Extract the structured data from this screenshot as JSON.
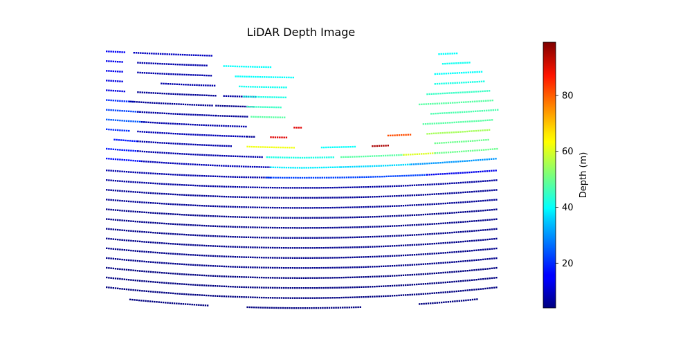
{
  "chart_data": {
    "type": "heatmap",
    "title": "LiDAR Depth Image",
    "colorbar": {
      "label": "Depth (m)",
      "colormap": "jet",
      "range": [
        4,
        99
      ],
      "ticks": [
        20,
        40,
        60,
        80
      ]
    },
    "axes_visible": false,
    "grid": false,
    "scan_rows": [
      {
        "segments": [
          {
            "x0": 0.0,
            "x1": 0.05,
            "depth": 15
          },
          {
            "x0": 0.07,
            "x1": 0.27,
            "depth": 10
          },
          {
            "x0": 0.85,
            "x1": 0.9,
            "depth": 40
          }
        ]
      },
      {
        "segments": [
          {
            "x0": 0.0,
            "x1": 0.04,
            "depth": 14
          },
          {
            "x0": 0.08,
            "x1": 0.26,
            "depth": 8
          },
          {
            "x0": 0.3,
            "x1": 0.42,
            "depth": 40
          },
          {
            "x0": 0.86,
            "x1": 0.93,
            "depth": 41
          }
        ]
      },
      {
        "segments": [
          {
            "x0": 0.0,
            "x1": 0.04,
            "depth": 14
          },
          {
            "x0": 0.08,
            "x1": 0.27,
            "depth": 8
          },
          {
            "x0": 0.33,
            "x1": 0.48,
            "depth": 40
          },
          {
            "x0": 0.84,
            "x1": 0.96,
            "depth": 40
          }
        ]
      },
      {
        "segments": [
          {
            "x0": 0.0,
            "x1": 0.04,
            "depth": 13
          },
          {
            "x0": 0.14,
            "x1": 0.28,
            "depth": 8
          },
          {
            "x0": 0.34,
            "x1": 0.46,
            "depth": 41
          },
          {
            "x0": 0.84,
            "x1": 0.97,
            "depth": 42
          }
        ]
      },
      {
        "segments": [
          {
            "x0": 0.0,
            "x1": 0.05,
            "depth": 13
          },
          {
            "x0": 0.08,
            "x1": 0.28,
            "depth": 6
          },
          {
            "x0": 0.3,
            "x1": 0.38,
            "depth": 7
          },
          {
            "x0": 0.35,
            "x1": 0.46,
            "depth": 42
          },
          {
            "x0": 0.82,
            "x1": 0.98,
            "depth": 45
          }
        ]
      },
      {
        "segments": [
          {
            "x0": 0.0,
            "x1": 0.07,
            "depth": 20
          },
          {
            "x0": 0.06,
            "x1": 0.27,
            "depth": 6
          },
          {
            "x0": 0.28,
            "x1": 0.38,
            "depth": 5
          },
          {
            "x0": 0.36,
            "x1": 0.45,
            "depth": 45
          },
          {
            "x0": 0.8,
            "x1": 0.99,
            "depth": 48
          }
        ]
      },
      {
        "segments": [
          {
            "x0": 0.0,
            "x1": 0.09,
            "depth": 22
          },
          {
            "x0": 0.08,
            "x1": 0.28,
            "depth": 7
          },
          {
            "x0": 0.28,
            "x1": 0.36,
            "depth": 6
          },
          {
            "x0": 0.37,
            "x1": 0.46,
            "depth": 48
          },
          {
            "x0": 0.83,
            "x1": 1.0,
            "depth": 47
          }
        ]
      },
      {
        "segments": [
          {
            "x0": 0.0,
            "x1": 0.1,
            "depth": 24
          },
          {
            "x0": 0.09,
            "x1": 0.36,
            "depth": 8
          },
          {
            "x0": 0.48,
            "x1": 0.5,
            "depth": 90
          },
          {
            "x0": 0.81,
            "x1": 0.99,
            "depth": 48
          }
        ]
      },
      {
        "segments": [
          {
            "x0": 0.0,
            "x1": 0.06,
            "depth": 20
          },
          {
            "x0": 0.08,
            "x1": 0.36,
            "depth": 9
          },
          {
            "x0": 0.36,
            "x1": 0.38,
            "depth": 6
          },
          {
            "x0": 0.42,
            "x1": 0.46,
            "depth": 90
          },
          {
            "x0": 0.72,
            "x1": 0.78,
            "depth": 80
          },
          {
            "x0": 0.82,
            "x1": 0.98,
            "depth": 55
          }
        ]
      },
      {
        "segments": [
          {
            "x0": 0.02,
            "x1": 0.08,
            "depth": 18
          },
          {
            "x0": 0.08,
            "x1": 0.32,
            "depth": 8
          },
          {
            "x0": 0.36,
            "x1": 0.48,
            "depth": 62
          },
          {
            "x0": 0.55,
            "x1": 0.64,
            "depth": 40
          },
          {
            "x0": 0.68,
            "x1": 0.72,
            "depth": 95
          },
          {
            "x0": 0.84,
            "x1": 0.98,
            "depth": 50
          }
        ]
      },
      {
        "segments": [
          {
            "x0": 0.0,
            "x1": 0.08,
            "depth": 18
          },
          {
            "x0": 0.08,
            "x1": 0.4,
            "depth": 8
          },
          {
            "x0": 0.41,
            "x1": 0.58,
            "depth": 42
          },
          {
            "x0": 0.6,
            "x1": 0.76,
            "depth": 48
          },
          {
            "x0": 0.76,
            "x1": 0.84,
            "depth": 60
          },
          {
            "x0": 0.84,
            "x1": 1.0,
            "depth": 50
          }
        ]
      },
      {
        "segments": [
          {
            "x0": 0.0,
            "x1": 0.09,
            "depth": 17
          },
          {
            "x0": 0.09,
            "x1": 0.42,
            "depth": 9
          },
          {
            "x0": 0.42,
            "x1": 0.6,
            "depth": 38
          },
          {
            "x0": 0.6,
            "x1": 0.78,
            "depth": 36
          },
          {
            "x0": 0.78,
            "x1": 1.0,
            "depth": 30
          }
        ]
      },
      {
        "segments": [
          {
            "x0": 0.0,
            "x1": 0.42,
            "depth": 8
          },
          {
            "x0": 0.41,
            "x1": 0.82,
            "depth": 22
          },
          {
            "x0": 0.82,
            "x1": 1.0,
            "depth": 14
          }
        ]
      },
      {
        "segments": [
          {
            "x0": 0.0,
            "x1": 1.0,
            "depth": 7
          }
        ]
      },
      {
        "segments": [
          {
            "x0": 0.0,
            "x1": 1.0,
            "depth": 6
          }
        ]
      },
      {
        "segments": [
          {
            "x0": 0.0,
            "x1": 1.0,
            "depth": 6
          }
        ]
      },
      {
        "segments": [
          {
            "x0": 0.0,
            "x1": 1.0,
            "depth": 5
          }
        ]
      },
      {
        "segments": [
          {
            "x0": 0.0,
            "x1": 1.0,
            "depth": 5
          }
        ]
      },
      {
        "segments": [
          {
            "x0": 0.0,
            "x1": 1.0,
            "depth": 5
          }
        ]
      },
      {
        "segments": [
          {
            "x0": 0.0,
            "x1": 1.0,
            "depth": 5
          }
        ]
      },
      {
        "segments": [
          {
            "x0": 0.0,
            "x1": 1.0,
            "depth": 5
          }
        ]
      },
      {
        "segments": [
          {
            "x0": 0.0,
            "x1": 1.0,
            "depth": 5
          }
        ]
      },
      {
        "segments": [
          {
            "x0": 0.0,
            "x1": 1.0,
            "depth": 4
          }
        ]
      },
      {
        "segments": [
          {
            "x0": 0.0,
            "x1": 1.0,
            "depth": 4
          }
        ]
      },
      {
        "segments": [
          {
            "x0": 0.0,
            "x1": 1.0,
            "depth": 4
          }
        ]
      },
      {
        "segments": [
          {
            "x0": 0.06,
            "x1": 0.26,
            "depth": 4
          },
          {
            "x0": 0.36,
            "x1": 0.65,
            "depth": 4
          },
          {
            "x0": 0.8,
            "x1": 0.95,
            "depth": 4
          }
        ]
      }
    ]
  }
}
